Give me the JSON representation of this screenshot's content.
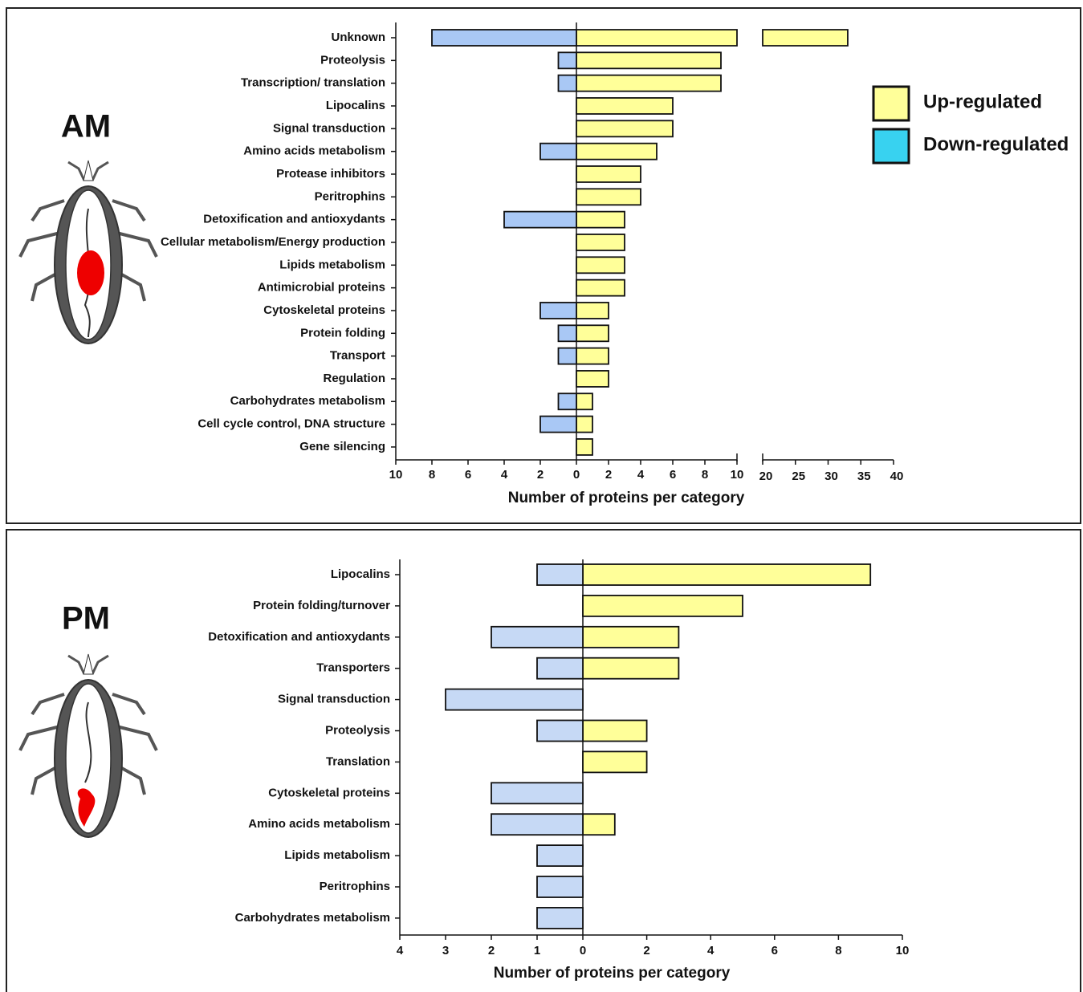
{
  "chart_data": [
    {
      "type": "bar",
      "title": "AM",
      "xlabel": "Number of proteins per category",
      "categories": [
        "Unknown",
        "Proteolysis",
        "Transcription/ translation",
        "Lipocalins",
        "Signal transduction",
        "Amino acids metabolism",
        "Protease inhibitors",
        "Peritrophins",
        "Detoxification and antioxydants",
        "Cellular metabolism/Energy production",
        "Lipids metabolism",
        "Antimicrobial proteins",
        "Cytoskeletal proteins",
        "Protein folding",
        "Transport",
        "Regulation",
        "Carbohydrates metabolism",
        "Cell cycle control, DNA structure",
        "Gene silencing"
      ],
      "series": [
        {
          "name": "Up-regulated",
          "color": "#ffff99",
          "values": [
            33,
            9,
            9,
            6,
            6,
            5,
            4,
            4,
            3,
            3,
            3,
            3,
            2,
            2,
            2,
            2,
            1,
            1,
            1
          ]
        },
        {
          "name": "Down-regulated",
          "color": "#a9c8f5",
          "legend_color": "#38d2f0",
          "values": [
            -8,
            -1,
            -1,
            0,
            0,
            -2,
            0,
            0,
            -4,
            0,
            0,
            0,
            -2,
            -1,
            -1,
            0,
            -1,
            -2,
            0
          ]
        }
      ],
      "xlim": [
        -10,
        10
      ],
      "xticks": [
        {
          "value": -10,
          "label": "10"
        },
        {
          "value": -8,
          "label": "8"
        },
        {
          "value": -6,
          "label": "6"
        },
        {
          "value": -4,
          "label": "4"
        },
        {
          "value": -2,
          "label": "2"
        },
        0,
        2,
        4,
        6,
        8,
        10
      ],
      "x2lim": [
        20,
        40
      ],
      "x2ticks": [
        20,
        25,
        30,
        35,
        40
      ],
      "legend": "upper right"
    },
    {
      "type": "bar",
      "title": "PM",
      "xlabel": "Number of proteins per category",
      "categories": [
        "Lipocalins",
        "Protein folding/turnover",
        "Detoxification and antioxydants",
        "Transporters",
        "Signal transduction",
        "Proteolysis",
        "Translation",
        "Cytoskeletal proteins",
        "Amino acids metabolism",
        "Lipids metabolism",
        "Peritrophins",
        "Carbohydrates metabolism"
      ],
      "series": [
        {
          "name": "Up-regulated",
          "color": "#ffff99",
          "values": [
            9,
            5,
            3,
            3,
            0,
            2,
            2,
            0,
            1,
            0,
            0,
            0
          ]
        },
        {
          "name": "Down-regulated",
          "color": "#c6d9f5",
          "values": [
            -1,
            0,
            -2,
            -1,
            -3,
            -1,
            0,
            -2,
            -2,
            -1,
            -1,
            -1
          ]
        }
      ],
      "xlim": [
        -4,
        10
      ],
      "xticks": [
        {
          "value": -4,
          "label": "4"
        },
        {
          "value": -3,
          "label": "3"
        },
        {
          "value": -2,
          "label": "2"
        },
        {
          "value": -1,
          "label": "1"
        },
        0,
        2,
        4,
        6,
        8,
        10
      ]
    }
  ]
}
